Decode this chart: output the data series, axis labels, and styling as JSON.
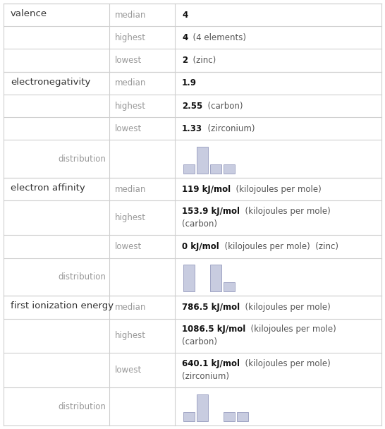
{
  "bg_color": "#ffffff",
  "line_color": "#d0d0d0",
  "bar_fill": "#c8cce0",
  "bar_edge": "#9fa4c4",
  "prop_color": "#333333",
  "label_color": "#999999",
  "bold_color": "#111111",
  "normal_color": "#555555",
  "sections": [
    {
      "property": "valence",
      "rows": [
        {
          "label": "median",
          "bold": "4",
          "rest": "",
          "lines": 1
        },
        {
          "label": "highest",
          "bold": "4",
          "rest": "  (4 elements)",
          "lines": 1
        },
        {
          "label": "lowest",
          "bold": "2",
          "rest": "  (zinc)",
          "lines": 1
        }
      ],
      "dist": null
    },
    {
      "property": "electronegativity",
      "rows": [
        {
          "label": "median",
          "bold": "1.9",
          "rest": "",
          "lines": 1
        },
        {
          "label": "highest",
          "bold": "2.55",
          "rest": "  (carbon)",
          "lines": 1
        },
        {
          "label": "lowest",
          "bold": "1.33",
          "rest": "  (zirconium)",
          "lines": 1
        },
        {
          "label": "distribution",
          "bold": "",
          "rest": "",
          "lines": 1
        }
      ],
      "dist": [
        1,
        3,
        1,
        1
      ]
    },
    {
      "property": "electron affinity",
      "rows": [
        {
          "label": "median",
          "bold": "119 kJ/mol",
          "rest": "  (kilojoules per mole)",
          "lines": 1
        },
        {
          "label": "highest",
          "bold": "153.9 kJ/mol",
          "rest": "  (kilojoules per mole)",
          "line2": "(carbon)",
          "lines": 2
        },
        {
          "label": "lowest",
          "bold": "0 kJ/mol",
          "rest": "  (kilojoules per mole)  (zinc)",
          "lines": 1
        },
        {
          "label": "distribution",
          "bold": "",
          "rest": "",
          "lines": 1
        }
      ],
      "dist": [
        3,
        0,
        3,
        1
      ]
    },
    {
      "property": "first ionization energy",
      "rows": [
        {
          "label": "median",
          "bold": "786.5 kJ/mol",
          "rest": "  (kilojoules per mole)",
          "lines": 1
        },
        {
          "label": "highest",
          "bold": "1086.5 kJ/mol",
          "rest": "  (kilojoules per mole)",
          "line2": "(carbon)",
          "lines": 2
        },
        {
          "label": "lowest",
          "bold": "640.1 kJ/mol",
          "rest": "  (kilojoules per mole)",
          "line2": "(zirconium)",
          "lines": 2
        },
        {
          "label": "distribution",
          "bold": "",
          "rest": "",
          "lines": 1
        }
      ],
      "dist": [
        1,
        3,
        0,
        1,
        1
      ]
    }
  ]
}
